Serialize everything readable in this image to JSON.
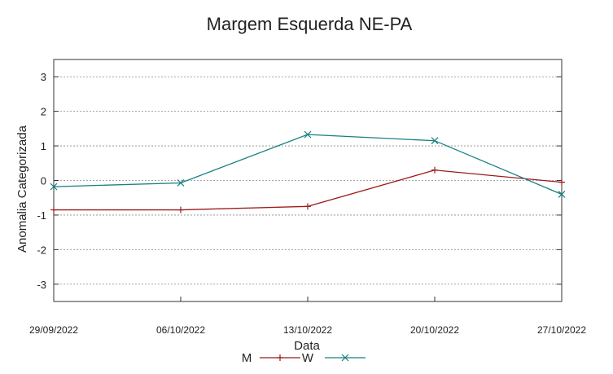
{
  "chart_data": {
    "type": "line",
    "title": "Margem Esquerda NE-PA",
    "xlabel": "Data",
    "ylabel": "Anomalia Categorizada",
    "categories": [
      "29/09/2022",
      "06/10/2022",
      "13/10/2022",
      "20/10/2022",
      "27/10/2022"
    ],
    "yticks": [
      3,
      2,
      1,
      0,
      -1,
      -2,
      -3
    ],
    "ytick_labels": [
      "3",
      "2",
      "1",
      "0",
      "-1",
      "-2",
      "-3"
    ],
    "ylim": [
      -3.5,
      3.5
    ],
    "grid": true,
    "series": [
      {
        "name": "M",
        "color": "#9b1b1b",
        "marker": "plus",
        "values": [
          -0.85,
          -0.85,
          -0.75,
          0.3,
          -0.05
        ]
      },
      {
        "name": "W",
        "color": "#16807f",
        "marker": "cross",
        "values": [
          -0.18,
          -0.07,
          1.33,
          1.15,
          -0.4
        ]
      }
    ]
  }
}
